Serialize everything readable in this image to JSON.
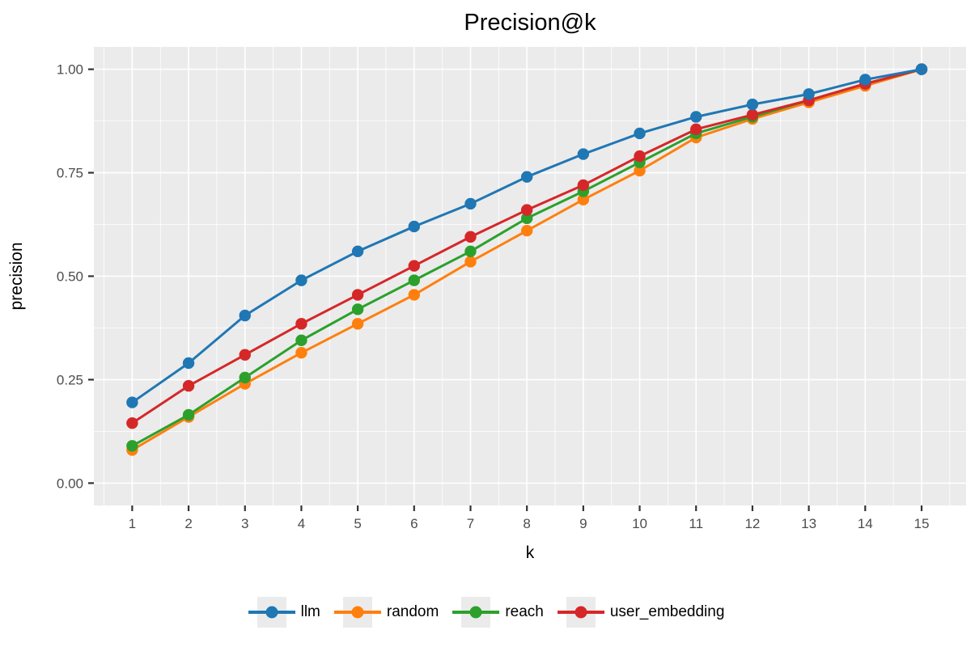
{
  "chart_data": {
    "type": "line",
    "title": "Precision@k",
    "xlabel": "k",
    "ylabel": "precision",
    "x": [
      1,
      2,
      3,
      4,
      5,
      6,
      7,
      8,
      9,
      10,
      11,
      12,
      13,
      14,
      15
    ],
    "x_tick_labels": [
      "1",
      "2",
      "3",
      "4",
      "5",
      "6",
      "7",
      "8",
      "9",
      "10",
      "11",
      "12",
      "13",
      "14",
      "15"
    ],
    "y_major_ticks": [
      0,
      0.25,
      0.5,
      0.75,
      1.0
    ],
    "y_tick_labels": [
      "0.00",
      "0.25",
      "0.50",
      "0.75",
      "1.00"
    ],
    "y_minor_ticks": [
      0.125,
      0.375,
      0.625,
      0.875
    ],
    "x_minor_ticks": [
      0.5,
      1.5,
      2.5,
      3.5,
      4.5,
      5.5,
      6.5,
      7.5,
      8.5,
      9.5,
      10.5,
      11.5,
      12.5,
      13.5,
      14.5,
      15.5
    ],
    "xlim": [
      0.32,
      15.79
    ],
    "ylim": [
      -0.054,
      1.054
    ],
    "grid": true,
    "legend_position": "bottom",
    "plot_bg_color": "#ebebeb",
    "grid_color": "#ffffff",
    "tick_color": "#333333",
    "tick_label_color": "#4d4d4d",
    "series": [
      {
        "name": "llm",
        "color": "#1f77b4",
        "values": [
          0.195,
          0.29,
          0.405,
          0.49,
          0.56,
          0.62,
          0.675,
          0.74,
          0.795,
          0.845,
          0.885,
          0.915,
          0.94,
          0.975,
          1.0
        ]
      },
      {
        "name": "random",
        "color": "#ff7f0e",
        "values": [
          0.08,
          0.16,
          0.24,
          0.315,
          0.385,
          0.455,
          0.535,
          0.61,
          0.685,
          0.755,
          0.835,
          0.88,
          0.92,
          0.96,
          1.0
        ]
      },
      {
        "name": "reach",
        "color": "#2ca02c",
        "values": [
          0.09,
          0.165,
          0.255,
          0.345,
          0.42,
          0.49,
          0.56,
          0.64,
          0.705,
          0.775,
          0.845,
          0.885,
          0.925,
          0.965,
          1.0
        ]
      },
      {
        "name": "user_embedding",
        "color": "#d62728",
        "values": [
          0.145,
          0.235,
          0.31,
          0.385,
          0.455,
          0.525,
          0.595,
          0.66,
          0.72,
          0.79,
          0.855,
          0.89,
          0.925,
          0.965,
          1.0
        ]
      }
    ],
    "draw_order": [
      "random",
      "reach",
      "user_embedding",
      "llm"
    ]
  }
}
